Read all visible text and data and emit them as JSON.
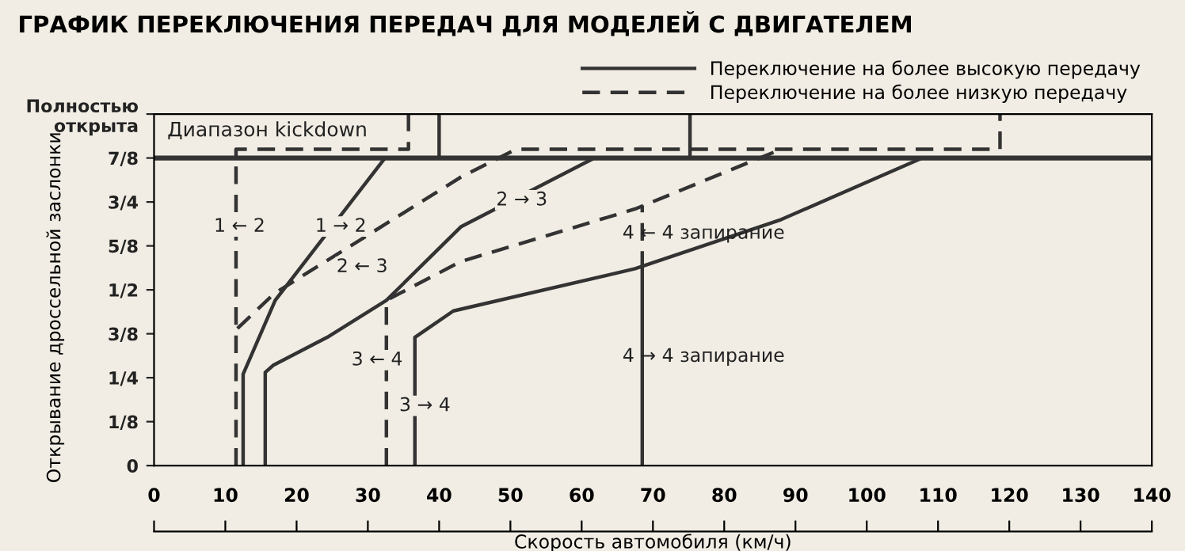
{
  "chart_data": {
    "type": "line",
    "title": "ГРАФИК ПЕРЕКЛЮЧЕНИЯ ПЕРЕДАЧ ДЛЯ МОДЕЛЕЙ С ДВИГАТЕЛЕМ",
    "xlabel": "Скорость автомобиля (км/ч)",
    "ylabel": "Открывание дроссельной заслонки",
    "xlim": [
      0,
      140
    ],
    "xticks": [
      0,
      10,
      20,
      30,
      40,
      50,
      60,
      70,
      80,
      90,
      100,
      110,
      120,
      130,
      140
    ],
    "ylim": [
      0,
      1
    ],
    "yticks": [
      0,
      {
        "value": 0.125,
        "label": "1/8"
      },
      {
        "value": 0.25,
        "label": "1/4"
      },
      {
        "value": 0.375,
        "label": "3/8"
      },
      {
        "value": 0.5,
        "label": "1/2"
      },
      {
        "value": 0.625,
        "label": "5/8"
      },
      {
        "value": 0.75,
        "label": "3/4"
      },
      {
        "value": 0.875,
        "label": "7/8"
      },
      {
        "value": 1,
        "label": "Полностью\nоткрыта"
      }
    ],
    "grid": false,
    "legend": "top right",
    "marker": "none",
    "ref_lines": [
      {
        "axis": "y",
        "value": 0.875,
        "label": "Диапазон kickdown",
        "color": "#333333"
      }
    ],
    "series": [
      {
        "name": "Переключение на более высокую передачу",
        "color": "#333333",
        "line_style": "solid",
        "x": [
          12.5,
          12.5,
          17,
          32.4,
          40,
          40
        ],
        "values": [
          0,
          0.26,
          0.47,
          0.875,
          0.875,
          1
        ]
      },
      {
        "name": "Переключение на более низкую передачу",
        "color": "#333333",
        "line_style": "dashed",
        "x": [
          11.5,
          11.5,
          35.7,
          35.7
        ],
        "values": [
          0,
          0.9,
          0.9,
          1
        ]
      },
      {
        "color": "#333333",
        "line_style": "solid",
        "x": [
          15.6,
          15.6,
          16.7,
          24.3,
          32.6,
          43.1,
          61.8,
          75.2,
          75.2
        ],
        "values": [
          0,
          0.265,
          0.285,
          0.365,
          0.47,
          0.68,
          0.875,
          0.875,
          1
        ]
      },
      {
        "color": "#333333",
        "line_style": "dashed",
        "x": [
          11.7,
          16.9,
          43,
          50.8,
          118.7,
          118.7
        ],
        "values": [
          0.39,
          0.49,
          0.82,
          0.9,
          0.9,
          1
        ]
      },
      {
        "color": "#333333",
        "line_style": "solid",
        "x": [
          36.6,
          36.6,
          42,
          67.5,
          88,
          107.8,
          140
        ],
        "values": [
          0,
          0.365,
          0.44,
          0.56,
          0.7,
          0.875,
          0.875
        ]
      },
      {
        "color": "#333333",
        "line_style": "dashed",
        "x": [
          32.6,
          32.6,
          43,
          67.5,
          88
        ],
        "values": [
          0,
          0.47,
          0.58,
          0.73,
          0.9
        ]
      },
      {
        "color": "#333333",
        "line_style": "solid",
        "x": [
          68.5,
          68.5
        ],
        "values": [
          0,
          0.56
        ]
      },
      {
        "color": "#333333",
        "line_style": "dashed",
        "x": [
          68.5,
          68.5
        ],
        "values": [
          0.56,
          0.74
        ]
      }
    ],
    "annotations": [
      {
        "text": "1 ← 2",
        "x": 12,
        "y": 0.68
      },
      {
        "text": "1 → 2",
        "x": 26.2,
        "y": 0.68
      },
      {
        "text": "2 ← 3",
        "x": 29.2,
        "y": 0.565
      },
      {
        "text": "2 → 3",
        "x": 51.6,
        "y": 0.755
      },
      {
        "text": "3 ← 4",
        "x": 31.3,
        "y": 0.3
      },
      {
        "text": "3 → 4",
        "x": 38,
        "y": 0.17
      },
      {
        "text": "4 ← 4 запирание",
        "x": 68.5,
        "y": 0.66
      },
      {
        "text": "4 → 4 запирание",
        "x": 68.5,
        "y": 0.31
      }
    ]
  }
}
